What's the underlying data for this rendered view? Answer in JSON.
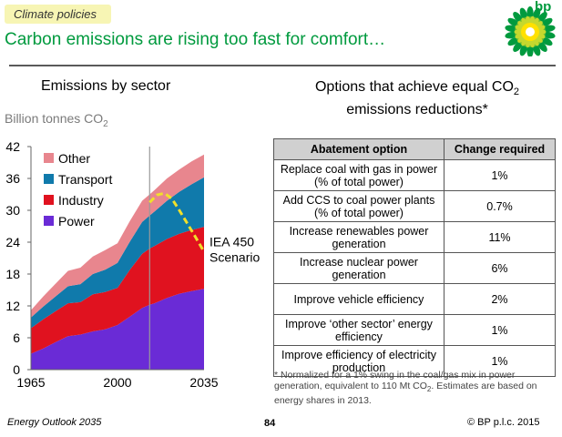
{
  "header": {
    "tag": "Climate policies",
    "headline": "Carbon emissions are rising too fast for comfort…",
    "logo_text": "bp"
  },
  "left_panel": {
    "title": "Emissions by sector",
    "unit_prefix": "Billion tonnes CO",
    "unit_sub": "2",
    "scenario_label_line1": "IEA 450",
    "scenario_label_line2": "Scenario"
  },
  "right_panel": {
    "title_line1_prefix": "Options that achieve equal CO",
    "title_line1_sub": "2",
    "title_line2": "emissions reductions*",
    "table": {
      "headers": [
        "Abatement option",
        "Change required"
      ],
      "rows": [
        [
          "Replace coal with gas in power (% of total power)",
          "1%"
        ],
        [
          "Add CCS to coal power plants (% of total power)",
          "0.7%"
        ],
        [
          "Increase renewables power generation",
          "11%"
        ],
        [
          "Increase nuclear power generation",
          "6%"
        ],
        [
          "Improve vehicle efficiency",
          "2%"
        ],
        [
          "Improve ‘other sector’ energy efficiency",
          "1%"
        ],
        [
          "Improve efficiency of electricity production",
          "1%"
        ]
      ]
    },
    "note_part1": "* Normalized for a 1% swing in the coal/gas mix in power generation, equivalent to 110 Mt CO",
    "note_sub": "2",
    "note_part2": ". Estimates are based on energy shares in 2013."
  },
  "footer": {
    "left": "Energy Outlook 2035",
    "page": "84",
    "right": "© BP p.l.c. 2015"
  },
  "chart_data": {
    "type": "area",
    "stacked": true,
    "title": "Emissions by sector",
    "ylabel": "Billion tonnes CO2",
    "xlabel": "",
    "x": [
      1965,
      1970,
      1975,
      1980,
      1985,
      1990,
      1995,
      2000,
      2005,
      2010,
      2013,
      2015,
      2020,
      2025,
      2030,
      2035
    ],
    "xticks": [
      "1965",
      "2000",
      "2035"
    ],
    "xlim": [
      1965,
      2035
    ],
    "ylim": [
      0,
      42
    ],
    "yticks": [
      0,
      6,
      12,
      18,
      24,
      30,
      36,
      42
    ],
    "projection_start": 2013,
    "series": [
      {
        "name": "Power",
        "color": "#6a2bd6",
        "values": [
          3.0,
          4.0,
          5.2,
          6.3,
          6.6,
          7.2,
          7.6,
          8.4,
          10.0,
          11.6,
          12.2,
          12.5,
          13.5,
          14.3,
          14.8,
          15.2
        ]
      },
      {
        "name": "Industry",
        "color": "#e0121f",
        "values": [
          4.8,
          5.5,
          5.8,
          6.2,
          6.1,
          7.0,
          7.0,
          7.0,
          8.8,
          10.2,
          10.6,
          10.8,
          11.1,
          11.3,
          11.5,
          11.7
        ]
      },
      {
        "name": "Transport",
        "color": "#107aab",
        "values": [
          2.0,
          2.4,
          2.8,
          3.2,
          3.4,
          3.8,
          4.2,
          4.7,
          5.3,
          6.0,
          6.2,
          6.5,
          7.2,
          7.9,
          8.6,
          9.3
        ]
      },
      {
        "name": "Other",
        "color": "#e8868e",
        "values": [
          1.4,
          1.9,
          2.4,
          2.9,
          3.1,
          3.3,
          3.7,
          3.7,
          3.9,
          4.0,
          4.0,
          4.0,
          4.2,
          4.2,
          4.3,
          4.3
        ]
      }
    ],
    "scenario_line": {
      "name": "IEA 450 Scenario",
      "color": "#f1e02a",
      "x": [
        2013,
        2016,
        2019,
        2022,
        2025,
        2028,
        2031,
        2035
      ],
      "values": [
        31.5,
        32.9,
        33.2,
        32.2,
        30.0,
        27.7,
        25.4,
        22.2
      ]
    }
  }
}
